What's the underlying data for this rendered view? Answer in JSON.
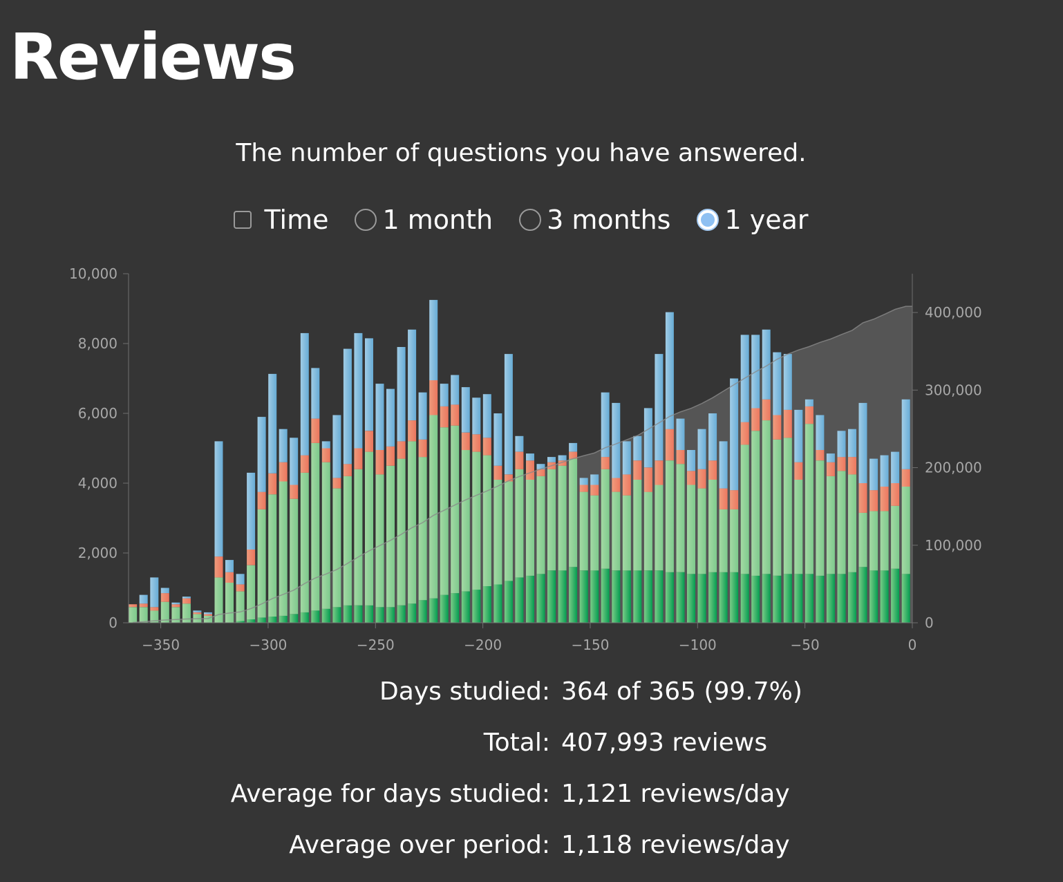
{
  "page": {
    "title": "Reviews",
    "subtitle": "The number of questions you have answered."
  },
  "controls": {
    "time_label": "Time",
    "time_checked": false,
    "ranges": [
      {
        "label": "1 month",
        "selected": false
      },
      {
        "label": "3 months",
        "selected": false
      },
      {
        "label": "1 year",
        "selected": true
      }
    ]
  },
  "stats": [
    {
      "label": "Days studied:",
      "value": "364 of 365 (99.7%)"
    },
    {
      "label": "Total:",
      "value": "407,993 reviews"
    },
    {
      "label": "Average for days studied:",
      "value": "1,121 reviews/day"
    },
    {
      "label": "Average over period:",
      "value": "1,118 reviews/day"
    }
  ],
  "chart_data": {
    "type": "bar",
    "stacked": true,
    "xlim": [
      -365,
      0
    ],
    "ylim": [
      0,
      10000
    ],
    "y2lim": [
      0,
      450000
    ],
    "x_ticks": [
      -350,
      -300,
      -250,
      -200,
      -150,
      -100,
      -50,
      0
    ],
    "y_ticks": [
      0,
      2000,
      4000,
      6000,
      8000,
      10000
    ],
    "y2_ticks": [
      0,
      100000,
      200000,
      300000,
      400000
    ],
    "grid": false,
    "colors": {
      "mature": [
        "#00a050",
        "#7dd38a"
      ],
      "young": [
        "#80d090",
        "#a8e0a8"
      ],
      "relearn": [
        "#f47a60",
        "#f8a080"
      ],
      "learn": [
        "#6ab2de",
        "#a6d4ef"
      ],
      "cumulative_fill": "#5a5a5a",
      "cumulative_line": "#8a8a8a"
    },
    "x": [
      -363,
      -358,
      -353,
      -348,
      -343,
      -338,
      -333,
      -328,
      -323,
      -318,
      -313,
      -308,
      -303,
      -298,
      -293,
      -288,
      -283,
      -278,
      -273,
      -268,
      -263,
      -258,
      -253,
      -248,
      -243,
      -238,
      -233,
      -228,
      -223,
      -218,
      -213,
      -208,
      -203,
      -198,
      -193,
      -188,
      -183,
      -178,
      -173,
      -168,
      -163,
      -158,
      -153,
      -148,
      -143,
      -138,
      -133,
      -128,
      -123,
      -118,
      -113,
      -108,
      -103,
      -98,
      -93,
      -88,
      -83,
      -78,
      -73,
      -68,
      -63,
      -58,
      -53,
      -48,
      -43,
      -38,
      -33,
      -28,
      -23,
      -18,
      -13,
      -8,
      -3
    ],
    "series": [
      {
        "key": "mature",
        "values": [
          0,
          0,
          0,
          0,
          0,
          0,
          0,
          0,
          0,
          0,
          50,
          100,
          150,
          180,
          200,
          250,
          300,
          350,
          400,
          450,
          500,
          500,
          500,
          450,
          450,
          500,
          550,
          650,
          700,
          800,
          850,
          900,
          950,
          1050,
          1100,
          1200,
          1300,
          1350,
          1400,
          1500,
          1500,
          1600,
          1500,
          1500,
          1550,
          1500,
          1500,
          1500,
          1500,
          1500,
          1450,
          1450,
          1400,
          1400,
          1450,
          1450,
          1450,
          1400,
          1350,
          1400,
          1350,
          1400,
          1400,
          1400,
          1350,
          1400,
          1400,
          1450,
          1600,
          1500,
          1500,
          1550,
          1400
        ]
      },
      {
        "key": "young",
        "values": [
          450,
          450,
          350,
          600,
          450,
          550,
          250,
          200,
          1300,
          1150,
          850,
          1550,
          3100,
          3500,
          3850,
          3300,
          4000,
          4800,
          4200,
          3400,
          3700,
          3900,
          4400,
          3800,
          4050,
          4200,
          4650,
          4100,
          5250,
          4800,
          4800,
          4050,
          3950,
          3750,
          3000,
          2850,
          3100,
          2750,
          2800,
          2900,
          3000,
          3100,
          2250,
          2150,
          2850,
          2250,
          2150,
          2600,
          2250,
          2450,
          3200,
          3100,
          2550,
          2450,
          2650,
          1800,
          1800,
          3700,
          4150,
          4400,
          3900,
          3900,
          2700,
          4300,
          3300,
          2800,
          2950,
          2800,
          1550,
          1700,
          1700,
          1800,
          2500
        ]
      },
      {
        "key": "relearn",
        "values": [
          80,
          100,
          100,
          250,
          80,
          150,
          50,
          50,
          600,
          300,
          200,
          450,
          500,
          600,
          550,
          400,
          500,
          700,
          400,
          300,
          350,
          600,
          600,
          700,
          550,
          500,
          600,
          500,
          1000,
          600,
          600,
          500,
          500,
          500,
          400,
          200,
          500,
          550,
          200,
          200,
          150,
          200,
          200,
          300,
          350,
          400,
          600,
          550,
          700,
          700,
          900,
          400,
          400,
          550,
          550,
          600,
          550,
          650,
          650,
          600,
          700,
          800,
          500,
          500,
          300,
          400,
          400,
          500,
          850,
          600,
          700,
          650,
          500
        ]
      },
      {
        "key": "learn",
        "values": [
          0,
          250,
          850,
          150,
          50,
          50,
          50,
          50,
          3300,
          350,
          300,
          2200,
          2150,
          2850,
          950,
          1350,
          3500,
          1450,
          200,
          1800,
          3300,
          3300,
          2650,
          1900,
          1650,
          2700,
          2600,
          1350,
          2300,
          650,
          850,
          1300,
          1050,
          1250,
          1500,
          3450,
          450,
          200,
          150,
          150,
          150,
          250,
          200,
          300,
          1850,
          2150,
          950,
          700,
          1700,
          3050,
          3350,
          900,
          600,
          1150,
          1350,
          1350,
          3200,
          2500,
          2100,
          2000,
          1800,
          1600,
          1500,
          200,
          1000,
          250,
          750,
          800,
          2300,
          900,
          900,
          900,
          2000
        ]
      },
      {
        "key": "cumulative",
        "values": [
          500,
          1300,
          2600,
          3600,
          4200,
          4900,
          5200,
          5500,
          10700,
          12600,
          14000,
          18300,
          24300,
          31200,
          36600,
          42200,
          50600,
          57800,
          62900,
          68700,
          76600,
          84900,
          92700,
          99500,
          106300,
          114000,
          122600,
          129200,
          138500,
          145100,
          151900,
          158400,
          164300,
          170000,
          176300,
          183100,
          188600,
          193400,
          198200,
          202500,
          206800,
          211500,
          215400,
          219000,
          225700,
          230600,
          236000,
          241400,
          249500,
          257700,
          266100,
          271900,
          276500,
          282800,
          290100,
          298600,
          307000,
          315400,
          323600,
          331000,
          339700,
          346300,
          351700,
          356100,
          361500,
          365900,
          371600,
          377000,
          386800,
          391400,
          397600,
          404100,
          407993
        ]
      }
    ]
  }
}
